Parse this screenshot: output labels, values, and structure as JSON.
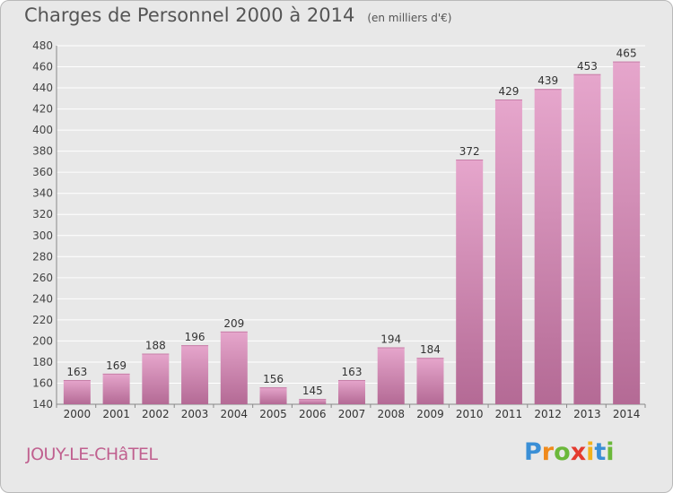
{
  "header": {
    "title": "Charges de Personnel 2000 à 2014",
    "unit_note": "(en milliers d'€)"
  },
  "footer": {
    "commune": "JOUY-LE-CHâTEL",
    "logo_text": "Proxiti"
  },
  "colors": {
    "bar": "#d98fb8",
    "bar_light": "#e6a6cc",
    "bar_dark": "#b46a95",
    "commune_text": "#c0608f",
    "background": "#e8e8e8"
  },
  "chart_data": {
    "type": "bar",
    "title": "Charges de Personnel 2000 à 2014",
    "subtitle": "(en milliers d'€)",
    "categories": [
      "2000",
      "2001",
      "2002",
      "2003",
      "2004",
      "2005",
      "2006",
      "2007",
      "2008",
      "2009",
      "2010",
      "2011",
      "2012",
      "2013",
      "2014"
    ],
    "values": [
      163,
      169,
      188,
      196,
      209,
      156,
      145,
      163,
      194,
      184,
      372,
      429,
      439,
      453,
      465
    ],
    "data_labels": [
      "163",
      "169",
      "188",
      "196",
      "209",
      "156",
      "145",
      "163",
      "194",
      "184",
      "372",
      "429",
      "439",
      "453",
      "465"
    ],
    "ylim": [
      140,
      480
    ],
    "yticks": [
      140,
      160,
      180,
      200,
      220,
      240,
      260,
      280,
      300,
      320,
      340,
      360,
      380,
      400,
      420,
      440,
      460,
      480
    ],
    "ytick_labels": [
      "140",
      "160",
      "180",
      "200",
      "220",
      "240",
      "260",
      "280",
      "300",
      "320",
      "340",
      "360",
      "380",
      "400",
      "420",
      "440",
      "460",
      "480"
    ],
    "grid": true,
    "xlabel": "",
    "ylabel": ""
  }
}
